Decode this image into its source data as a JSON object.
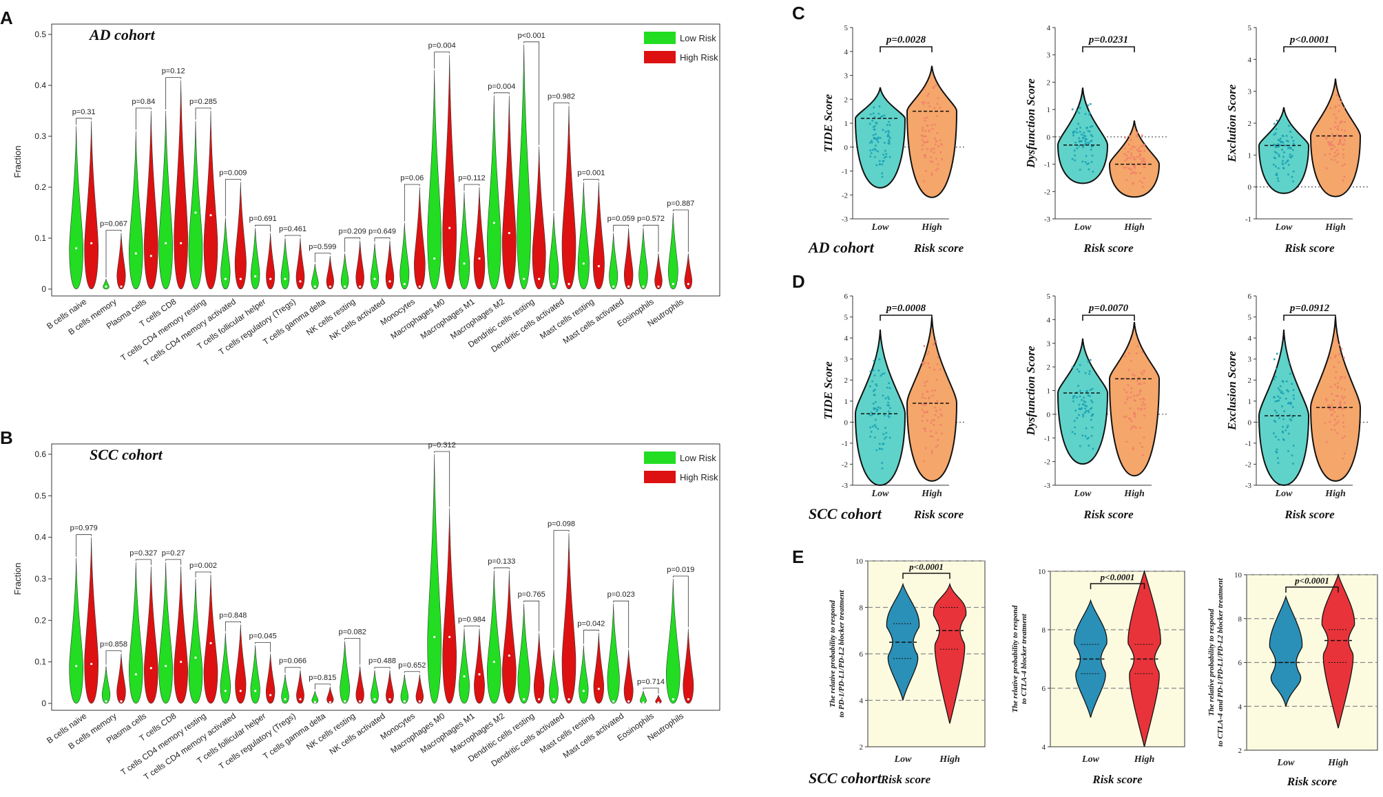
{
  "chart_data": [
    {
      "id": "A",
      "type": "violin",
      "panel_label": "A",
      "title": "AD cohort",
      "ylabel": "Fraction",
      "ylim": [
        0,
        0.5
      ],
      "yticks": [
        0.0,
        0.1,
        0.2,
        0.3,
        0.4,
        0.5
      ],
      "legend": [
        "Low Risk",
        "High Risk"
      ],
      "categories": [
        "B cells naive",
        "B cells memory",
        "Plasma cells",
        "T cells CD8",
        "T cells CD4 memory resting",
        "T cells CD4 memory activated",
        "T cells follicular helper",
        "T cells regulatory (Tregs)",
        "T cells gamma delta",
        "NK cells resting",
        "NK cells activated",
        "Monocytes",
        "Macrophages M0",
        "Macrophages M1",
        "Macrophages M2",
        "Dendritic cells resting",
        "Dendritic cells activated",
        "Mast cells resting",
        "Mast cells activated",
        "Eosinophils",
        "Neutrophils"
      ],
      "pvalues": [
        "p=0.31",
        "p=0.067",
        "p=0.84",
        "p=0.12",
        "p=0.285",
        "p=0.009",
        "p=0.691",
        "p=0.461",
        "p=0.599",
        "p=0.209",
        "p=0.649",
        "p=0.06",
        "p=0.004",
        "p=0.112",
        "p=0.004",
        "p<0.001",
        "p=0.982",
        "p=0.001",
        "p=0.059",
        "p=0.572",
        "p=0.887"
      ],
      "series": [
        {
          "name": "Low Risk",
          "max": [
            0.32,
            0.02,
            0.31,
            0.35,
            0.33,
            0.14,
            0.12,
            0.1,
            0.05,
            0.07,
            0.09,
            0.13,
            0.43,
            0.19,
            0.38,
            0.48,
            0.15,
            0.21,
            0.11,
            0.12,
            0.15
          ],
          "median": [
            0.08,
            0.005,
            0.07,
            0.09,
            0.15,
            0.02,
            0.025,
            0.02,
            0.005,
            0.005,
            0.02,
            0.01,
            0.06,
            0.05,
            0.13,
            0.02,
            0.01,
            0.05,
            0.005,
            0.005,
            0.01
          ]
        },
        {
          "name": "High Risk",
          "max": [
            0.33,
            0.11,
            0.35,
            0.41,
            0.35,
            0.21,
            0.11,
            0.1,
            0.065,
            0.095,
            0.095,
            0.2,
            0.46,
            0.2,
            0.38,
            0.28,
            0.36,
            0.21,
            0.12,
            0.07,
            0.07
          ],
          "median": [
            0.09,
            0.005,
            0.065,
            0.09,
            0.145,
            0.02,
            0.02,
            0.015,
            0.005,
            0.005,
            0.015,
            0.005,
            0.12,
            0.06,
            0.11,
            0.02,
            0.01,
            0.045,
            0.005,
            0.005,
            0.01
          ]
        }
      ]
    },
    {
      "id": "B",
      "type": "violin",
      "panel_label": "B",
      "title": "SCC cohort",
      "ylabel": "Fraction",
      "ylim": [
        0,
        0.6
      ],
      "yticks": [
        0.0,
        0.1,
        0.2,
        0.3,
        0.4,
        0.5,
        0.6
      ],
      "legend": [
        "Low Risk",
        "High Risk"
      ],
      "categories": [
        "B cells naive",
        "B cells memory",
        "Plasma cells",
        "T cells CD8",
        "T cells CD4 memory resting",
        "T cells CD4 memory activated",
        "T cells follicular helper",
        "T cells regulatory (Tregs)",
        "T cells gamma delta",
        "NK cells resting",
        "NK cells activated",
        "Monocytes",
        "Macrophages M0",
        "Macrophages M1",
        "Macrophages M2",
        "Dendritic cells resting",
        "Dendritic cells activated",
        "Mast cells resting",
        "Mast cells activated",
        "Eosinophils",
        "Neutrophils"
      ],
      "pvalues": [
        "p=0.979",
        "p=0.858",
        "p=0.327",
        "p=0.27",
        "p=0.002",
        "p=0.848",
        "p=0.045",
        "p=0.066",
        "p=0.815",
        "p=0.082",
        "p=0.488",
        "p=0.652",
        "p=0.312",
        "p=0.984",
        "p=0.133",
        "p=0.765",
        "p=0.098",
        "p=0.042",
        "p=0.023",
        "p=0.714",
        "p=0.019"
      ],
      "series": [
        {
          "name": "Low Risk",
          "max": [
            0.35,
            0.09,
            0.34,
            0.34,
            0.3,
            0.17,
            0.14,
            0.07,
            0.03,
            0.15,
            0.08,
            0.07,
            0.6,
            0.18,
            0.32,
            0.24,
            0.13,
            0.14,
            0.24,
            0.03,
            0.3
          ],
          "median": [
            0.09,
            0.005,
            0.07,
            0.09,
            0.11,
            0.03,
            0.03,
            0.01,
            0.003,
            0.005,
            0.01,
            0.005,
            0.16,
            0.065,
            0.1,
            0.01,
            0.01,
            0.03,
            0.005,
            0.002,
            0.01
          ]
        },
        {
          "name": "High Risk",
          "max": [
            0.4,
            0.12,
            0.33,
            0.33,
            0.31,
            0.19,
            0.12,
            0.08,
            0.04,
            0.09,
            0.08,
            0.07,
            0.47,
            0.18,
            0.32,
            0.17,
            0.41,
            0.17,
            0.13,
            0.02,
            0.18
          ],
          "median": [
            0.095,
            0.005,
            0.085,
            0.1,
            0.145,
            0.03,
            0.02,
            0.01,
            0.003,
            0.005,
            0.01,
            0.005,
            0.16,
            0.07,
            0.115,
            0.01,
            0.01,
            0.035,
            0.005,
            0.002,
            0.01
          ]
        }
      ]
    },
    {
      "id": "C",
      "type": "violin",
      "panel_label": "C",
      "cohort_label": "AD cohort",
      "xlabel": "Risk score",
      "categories": [
        "Low",
        "High"
      ],
      "subplots": [
        {
          "ylabel": "TIDE Score",
          "ylim": [
            -3,
            5
          ],
          "yticks": [
            -3,
            -2,
            -1,
            0,
            1,
            2,
            3,
            4,
            5
          ],
          "pvalue": "p=0.0028",
          "range": [
            [
              -1.7,
              2.5
            ],
            [
              -2.1,
              3.4
            ]
          ],
          "median": [
            1.2,
            1.5
          ]
        },
        {
          "ylabel": "Dysfunction Score",
          "ylim": [
            -3,
            4
          ],
          "yticks": [
            -3,
            -2,
            -1,
            0,
            1,
            2,
            3,
            4
          ],
          "pvalue": "p=0.0231",
          "range": [
            [
              -1.7,
              1.8
            ],
            [
              -2.2,
              0.6
            ]
          ],
          "median": [
            -0.3,
            -1.0
          ]
        },
        {
          "ylabel": "Exclution Score",
          "ylim": [
            -1,
            5
          ],
          "yticks": [
            -1,
            0,
            1,
            2,
            3,
            4,
            5
          ],
          "pvalue": "p<0.0001",
          "range": [
            [
              -0.2,
              2.5
            ],
            [
              -0.3,
              3.4
            ]
          ],
          "median": [
            1.3,
            1.6
          ]
        }
      ]
    },
    {
      "id": "D",
      "type": "violin",
      "panel_label": "D",
      "cohort_label": "SCC cohort",
      "xlabel": "Risk score",
      "categories": [
        "Low",
        "High"
      ],
      "subplots": [
        {
          "ylabel": "TIDE Score",
          "ylim": [
            -3,
            6
          ],
          "yticks": [
            -3,
            -2,
            -1,
            0,
            1,
            2,
            3,
            4,
            5,
            6
          ],
          "pvalue": "p=0.0008",
          "range": [
            [
              -3.0,
              4.4
            ],
            [
              -2.8,
              5.0
            ]
          ],
          "median": [
            0.4,
            0.9
          ]
        },
        {
          "ylabel": "Dysfunction Score",
          "ylim": [
            -3,
            5
          ],
          "yticks": [
            -3,
            -2,
            -1,
            0,
            1,
            2,
            3,
            4,
            5
          ],
          "pvalue": "p=0.0070",
          "range": [
            [
              -2.1,
              3.2
            ],
            [
              -2.6,
              3.9
            ]
          ],
          "median": [
            0.9,
            1.5
          ]
        },
        {
          "ylabel": "Exclusion Score",
          "ylim": [
            -3,
            6
          ],
          "yticks": [
            -3,
            -2,
            -1,
            0,
            1,
            2,
            3,
            4,
            5,
            6
          ],
          "pvalue": "p=0.0912",
          "range": [
            [
              -3.0,
              4.4
            ],
            [
              -2.8,
              5.0
            ]
          ],
          "median": [
            0.3,
            0.7
          ]
        }
      ]
    },
    {
      "id": "E",
      "type": "violin",
      "panel_label": "E",
      "cohort_label": "SCC cohort",
      "xlabel": "Risk score",
      "categories": [
        "Low",
        "High"
      ],
      "subplots": [
        {
          "ylabel_lines": [
            "The relative probability to respond",
            "to PD-1/PD-L1/PD-L2 blocker treatment"
          ],
          "ylim": [
            2,
            10
          ],
          "yticks": [
            2,
            4,
            6,
            8,
            10
          ],
          "pvalue": "p<0.0001",
          "range": [
            [
              4,
              9
            ],
            [
              3,
              9
            ]
          ],
          "median": [
            6.5,
            7.0
          ],
          "quartiles": [
            [
              5.8,
              7.3
            ],
            [
              6.2,
              8.0
            ]
          ]
        },
        {
          "ylabel_lines": [
            "The relative probability to respond",
            "to CTLA-4  blocker treatment"
          ],
          "ylim": [
            4,
            10
          ],
          "yticks": [
            4,
            6,
            8,
            10
          ],
          "pvalue": "p<0.0001",
          "range": [
            [
              5,
              9
            ],
            [
              4,
              10
            ]
          ],
          "median": [
            7.0,
            7.0
          ],
          "quartiles": [
            [
              6.5,
              7.5
            ],
            [
              6.5,
              7.5
            ]
          ]
        },
        {
          "ylabel_lines": [
            "The relative probability to respond",
            "to CTLA-4 and PD-1/PD-L1/PD-L2 blocker treatment"
          ],
          "ylim": [
            2,
            10
          ],
          "yticks": [
            2,
            4,
            6,
            8,
            10
          ],
          "pvalue": "p<0.0001",
          "range": [
            [
              4,
              9
            ],
            [
              3,
              10
            ]
          ],
          "median": [
            6.0,
            7.0
          ],
          "quartiles": [
            [
              6.0,
              6.0
            ],
            [
              6.0,
              7.5
            ]
          ]
        }
      ]
    }
  ],
  "colors": {
    "low_green": "#22dd22",
    "high_red": "#dd1111",
    "low_teal": "#5fd3c9",
    "high_orange": "#f5a66a",
    "teal_dots": "#1a9fb5",
    "orange_dots": "#f07f6b",
    "e_low": "#2a90b8",
    "e_high": "#e8333a",
    "e_bg": "#fcfbe0"
  }
}
